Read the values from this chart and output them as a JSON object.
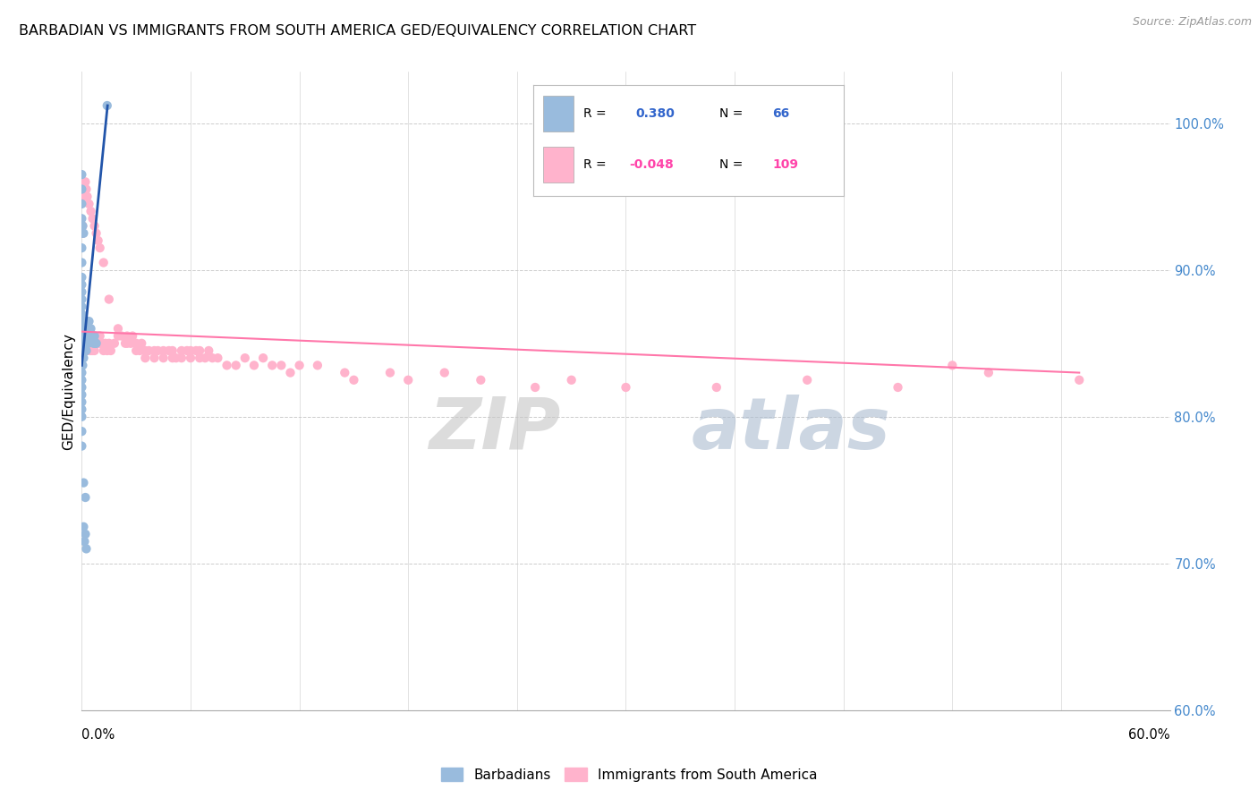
{
  "title": "BARBADIAN VS IMMIGRANTS FROM SOUTH AMERICA GED/EQUIVALENCY CORRELATION CHART",
  "source": "Source: ZipAtlas.com",
  "ylabel": "GED/Equivalency",
  "watermark_zip": "ZIP",
  "watermark_atlas": "atlas",
  "blue_color": "#99BBDD",
  "pink_color": "#FFB3CC",
  "blue_line_color": "#2255AA",
  "pink_line_color": "#FF77AA",
  "right_ytick_values": [
    60.0,
    70.0,
    80.0,
    90.0,
    100.0
  ],
  "right_ytick_labels": [
    "60.0%",
    "70.0%",
    "80.0%",
    "90.0%",
    "100.0%"
  ],
  "xmin": 0.0,
  "xmax": 60.0,
  "ymin": 60.0,
  "ymax": 103.5,
  "blue_scatter_x": [
    0.0,
    0.0,
    0.0,
    0.0,
    0.0,
    0.0,
    0.0,
    0.0,
    0.0,
    0.0,
    0.0,
    0.0,
    0.0,
    0.0,
    0.0,
    0.0,
    0.0,
    0.0,
    0.0,
    0.0,
    0.05,
    0.05,
    0.1,
    0.1,
    0.1,
    0.1,
    0.15,
    0.15,
    0.15,
    0.2,
    0.2,
    0.2,
    0.25,
    0.25,
    0.3,
    0.3,
    0.3,
    0.35,
    0.4,
    0.4,
    0.45,
    0.5,
    0.5,
    0.6,
    0.65,
    0.7,
    0.75,
    0.8,
    0.1,
    0.15,
    0.2,
    0.25,
    0.1,
    0.2,
    1.4,
    0.05,
    0.1,
    0.0,
    0.0,
    0.0,
    0.0,
    0.0,
    0.0,
    0.0,
    0.0,
    0.0
  ],
  "blue_scatter_y": [
    84.5,
    84.0,
    83.5,
    83.0,
    82.5,
    82.0,
    81.5,
    81.0,
    80.5,
    80.0,
    85.0,
    85.5,
    86.0,
    86.5,
    87.0,
    87.5,
    88.0,
    88.5,
    89.0,
    89.5,
    84.0,
    83.5,
    85.5,
    85.0,
    84.5,
    84.0,
    85.5,
    85.0,
    84.5,
    86.5,
    86.0,
    85.5,
    85.0,
    84.5,
    86.0,
    85.5,
    85.0,
    85.0,
    86.5,
    86.0,
    85.5,
    86.0,
    85.5,
    85.5,
    85.0,
    85.5,
    85.0,
    85.0,
    72.5,
    71.5,
    72.0,
    71.0,
    75.5,
    74.5,
    101.2,
    93.0,
    92.5,
    96.5,
    95.5,
    94.5,
    93.5,
    92.5,
    91.5,
    90.5,
    79.0,
    78.0
  ],
  "pink_scatter_x": [
    0.0,
    0.0,
    0.0,
    0.05,
    0.1,
    0.1,
    0.15,
    0.2,
    0.2,
    0.25,
    0.3,
    0.3,
    0.35,
    0.4,
    0.4,
    0.5,
    0.5,
    0.6,
    0.6,
    0.7,
    0.7,
    0.8,
    0.9,
    1.0,
    1.0,
    1.1,
    1.2,
    1.3,
    1.4,
    1.5,
    1.6,
    1.8,
    2.0,
    2.0,
    2.2,
    2.4,
    2.5,
    2.5,
    2.7,
    2.8,
    3.0,
    3.0,
    3.2,
    3.3,
    3.5,
    3.5,
    3.7,
    4.0,
    4.0,
    4.2,
    4.5,
    4.5,
    4.8,
    5.0,
    5.0,
    5.2,
    5.5,
    5.5,
    5.8,
    6.0,
    6.0,
    6.3,
    6.5,
    6.5,
    6.8,
    7.0,
    7.2,
    7.5,
    8.0,
    8.5,
    9.0,
    9.5,
    10.0,
    10.5,
    11.0,
    11.5,
    12.0,
    13.0,
    14.5,
    15.0,
    17.0,
    18.0,
    20.0,
    22.0,
    25.0,
    27.0,
    30.0,
    35.0,
    40.0,
    45.0,
    48.0,
    50.0,
    55.0,
    0.05,
    0.05,
    0.1,
    0.15,
    0.2,
    0.25,
    0.3,
    0.4,
    0.5,
    0.6,
    0.7,
    0.8,
    0.9,
    1.0,
    1.2,
    1.5
  ],
  "pink_scatter_y": [
    85.5,
    85.0,
    84.5,
    85.5,
    86.0,
    85.5,
    85.0,
    85.5,
    85.0,
    85.5,
    85.0,
    84.5,
    85.0,
    85.5,
    85.0,
    85.0,
    84.5,
    85.0,
    84.5,
    85.0,
    84.5,
    85.0,
    85.0,
    85.5,
    85.0,
    85.0,
    84.5,
    85.0,
    84.5,
    85.0,
    84.5,
    85.0,
    86.0,
    85.5,
    85.5,
    85.0,
    85.5,
    85.0,
    85.0,
    85.5,
    84.5,
    85.0,
    84.5,
    85.0,
    84.5,
    84.0,
    84.5,
    84.5,
    84.0,
    84.5,
    84.5,
    84.0,
    84.5,
    84.0,
    84.5,
    84.0,
    84.5,
    84.0,
    84.5,
    84.0,
    84.5,
    84.5,
    84.0,
    84.5,
    84.0,
    84.5,
    84.0,
    84.0,
    83.5,
    83.5,
    84.0,
    83.5,
    84.0,
    83.5,
    83.5,
    83.0,
    83.5,
    83.5,
    83.0,
    82.5,
    83.0,
    82.5,
    83.0,
    82.5,
    82.0,
    82.5,
    82.0,
    82.0,
    82.5,
    82.0,
    83.5,
    83.0,
    82.5,
    93.0,
    92.5,
    95.5,
    95.0,
    96.0,
    95.5,
    95.0,
    94.5,
    94.0,
    93.5,
    93.0,
    92.5,
    92.0,
    91.5,
    90.5,
    88.0
  ],
  "blue_trend_x": [
    0.0,
    1.42
  ],
  "blue_trend_y": [
    83.5,
    101.2
  ],
  "pink_trend_x": [
    0.0,
    55.0
  ],
  "pink_trend_y": [
    85.8,
    83.0
  ]
}
